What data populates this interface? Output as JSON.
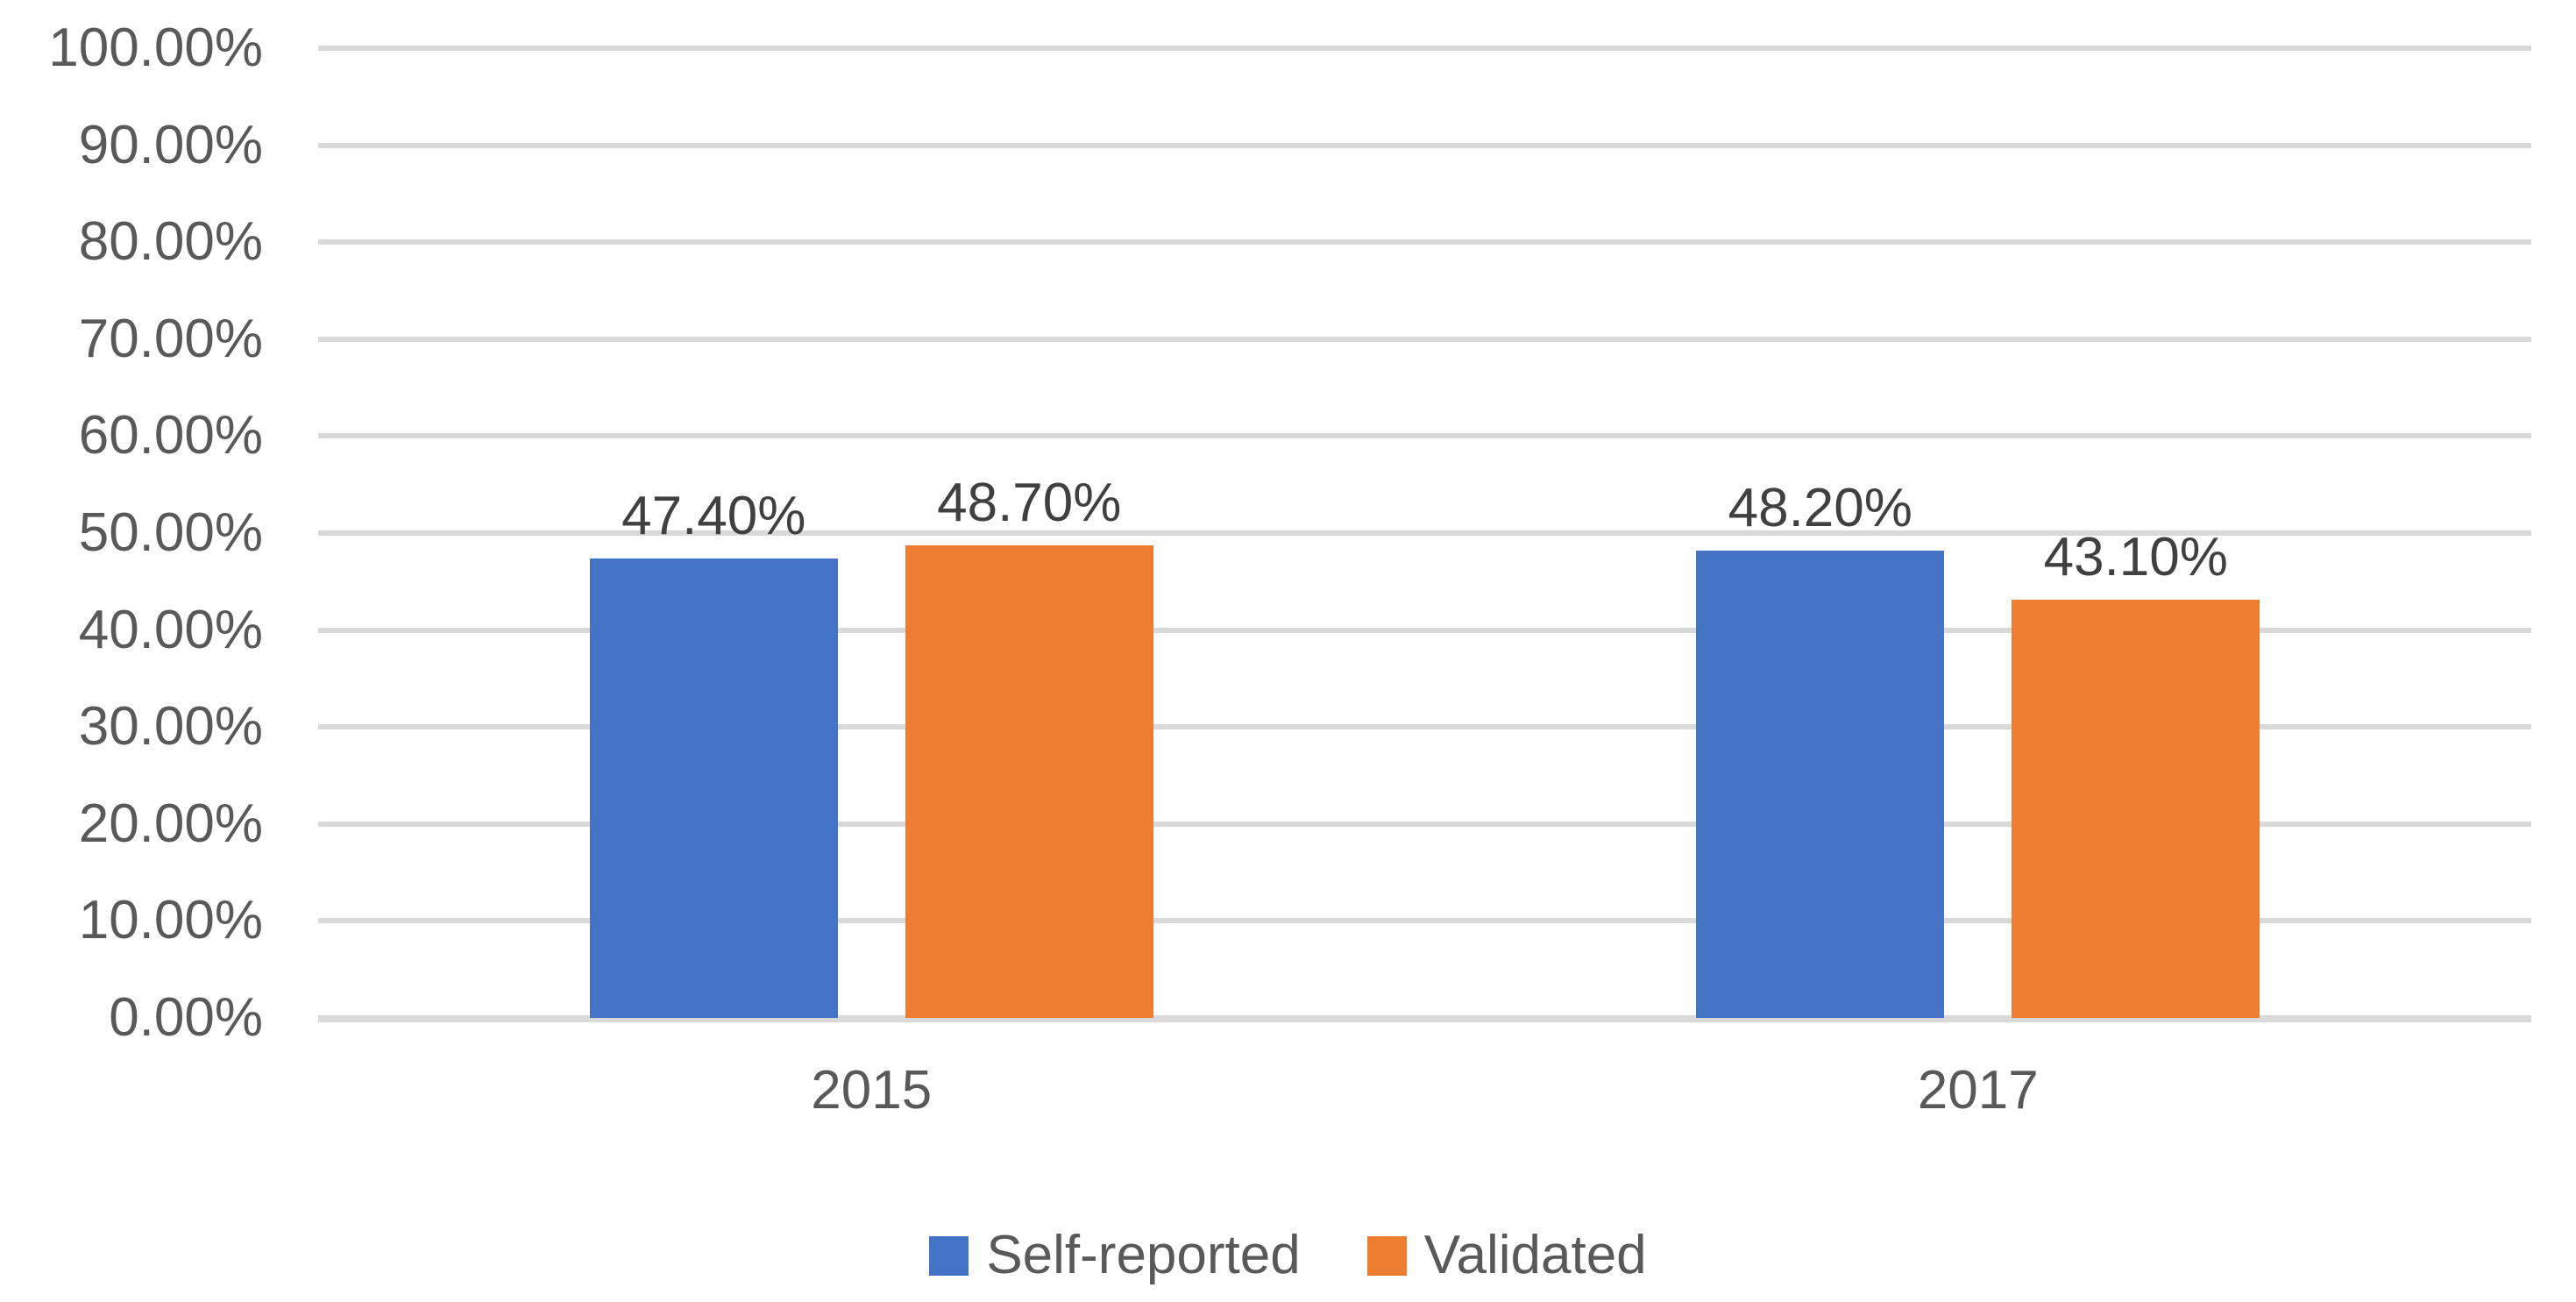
{
  "chart_data": {
    "type": "bar",
    "categories": [
      "2015",
      "2017"
    ],
    "series": [
      {
        "name": "Self-reported",
        "color": "#4472C4",
        "values": [
          47.4,
          48.2
        ],
        "data_labels": [
          "47.40%",
          "48.20%"
        ]
      },
      {
        "name": "Validated",
        "color": "#ED7D31",
        "values": [
          48.7,
          43.1
        ],
        "data_labels": [
          "48.70%",
          "43.10%"
        ]
      }
    ],
    "y_ticks": [
      "0.00%",
      "10.00%",
      "20.00%",
      "30.00%",
      "40.00%",
      "50.00%",
      "60.00%",
      "70.00%",
      "80.00%",
      "90.00%",
      "100.00%"
    ],
    "ylim": [
      0,
      100
    ],
    "grid": true,
    "legend_position": "bottom",
    "colors": {
      "gridline": "#D9D9D9",
      "axis_line": "#D9D9D9",
      "tick_label_text": "#595959",
      "category_label_text": "#595959",
      "data_label_text": "#404040",
      "legend_text": "#595959",
      "background": "#FFFFFF"
    }
  }
}
